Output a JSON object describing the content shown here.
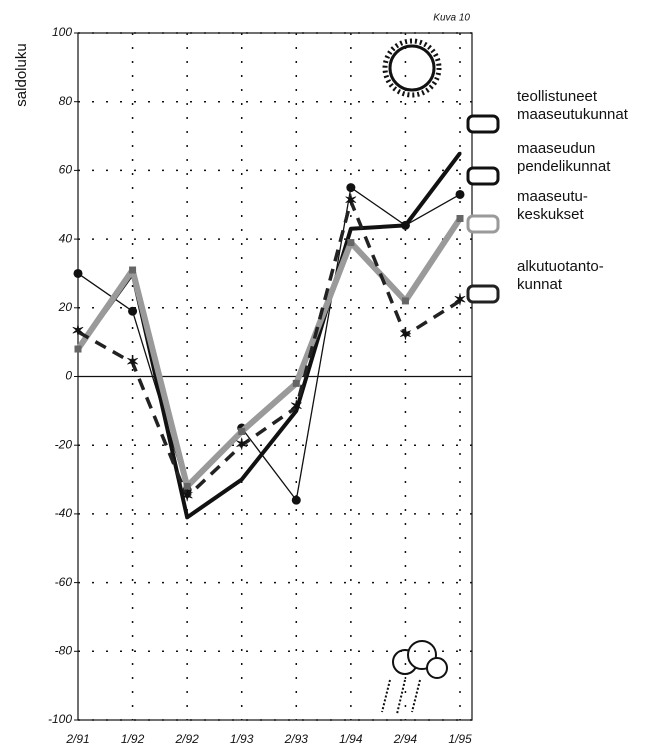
{
  "chart_data": {
    "type": "line",
    "title": "Kuva 10",
    "y_label": "saldoluku",
    "categories": [
      "2/91",
      "1/92",
      "2/92",
      "1/93",
      "2/93",
      "1/94",
      "2/94",
      "1/95"
    ],
    "ylim": [
      -100,
      100
    ],
    "yticks": [
      -100,
      -80,
      -60,
      -40,
      -20,
      0,
      20,
      40,
      60,
      80,
      100
    ],
    "grid": true,
    "series": [
      {
        "name": "teollistuneet maaseutukunnat",
        "color": "#111111",
        "line_style": "solid-thick",
        "values": [
          8,
          30,
          -41,
          -30,
          -10,
          43,
          44,
          65
        ]
      },
      {
        "name": "maaseudun pendelikunnat",
        "color": "#111111",
        "line_style": "solid-thin",
        "values": [
          30,
          19,
          -33,
          -15,
          -36,
          55,
          44,
          53
        ]
      },
      {
        "name": "maaseutu-keskukset",
        "color": "#9a9a9a",
        "line_style": "solid-gray",
        "values": [
          8,
          31,
          -32,
          -16,
          -2,
          39,
          22,
          46
        ]
      },
      {
        "name": "alkutuotanto-kunnat",
        "color": "#222222",
        "line_style": "dashed",
        "values": [
          13,
          4,
          -35,
          -20,
          -9,
          51,
          12,
          22
        ]
      }
    ]
  }
}
